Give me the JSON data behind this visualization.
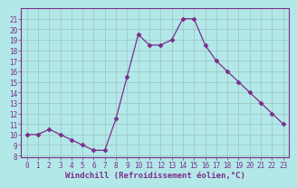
{
  "x": [
    0,
    1,
    2,
    3,
    4,
    5,
    6,
    7,
    8,
    9,
    10,
    11,
    12,
    13,
    14,
    15,
    16,
    17,
    18,
    19,
    20,
    21,
    22,
    23
  ],
  "y": [
    10.0,
    10.0,
    10.5,
    10.0,
    9.5,
    9.0,
    8.5,
    8.5,
    11.5,
    15.5,
    19.5,
    18.5,
    18.5,
    19.0,
    21.0,
    21.0,
    18.5,
    17.0,
    16.0,
    15.0,
    14.0,
    13.0,
    12.0,
    11.0
  ],
  "line_color": "#7b2d8b",
  "marker": "D",
  "marker_size": 2.5,
  "background_color": "#b3e8e8",
  "grid_color": "#a0c8c8",
  "xlabel": "Windchill (Refroidissement éolien,°C)",
  "xlabel_color": "#7b2d8b",
  "ylabel_ticks": [
    8,
    9,
    10,
    11,
    12,
    13,
    14,
    15,
    16,
    17,
    18,
    19,
    20,
    21
  ],
  "ylim": [
    7.8,
    22.0
  ],
  "xlim": [
    -0.5,
    23.5
  ],
  "xticks": [
    0,
    1,
    2,
    3,
    4,
    5,
    6,
    7,
    8,
    9,
    10,
    11,
    12,
    13,
    14,
    15,
    16,
    17,
    18,
    19,
    20,
    21,
    22,
    23
  ],
  "tick_fontsize": 5.5,
  "xlabel_fontsize": 6.5
}
